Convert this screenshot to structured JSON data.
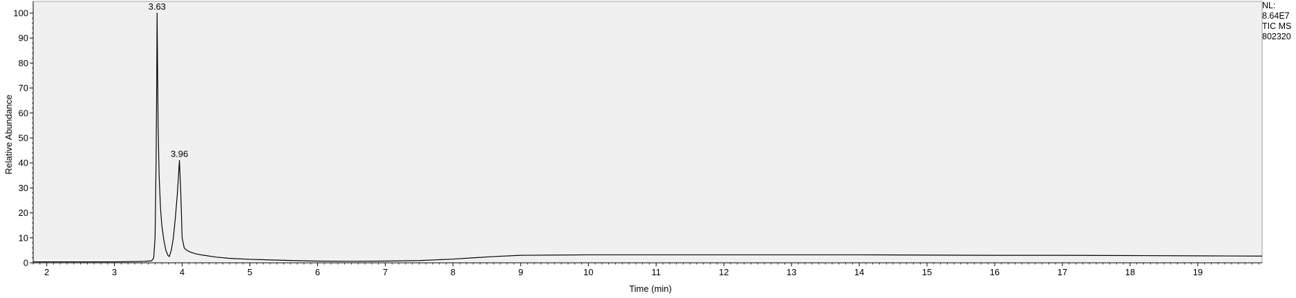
{
  "chart_data": {
    "type": "line",
    "title": "",
    "xlabel": "Time (min)",
    "ylabel": "Relative Abundance",
    "xlim": [
      1.8,
      19.95
    ],
    "ylim": [
      0,
      100
    ],
    "x_ticks": [
      2,
      3,
      4,
      5,
      6,
      7,
      8,
      9,
      10,
      11,
      12,
      13,
      14,
      15,
      16,
      17,
      18,
      19
    ],
    "y_ticks": [
      0,
      10,
      20,
      30,
      40,
      50,
      60,
      70,
      80,
      90,
      100
    ],
    "grid": false,
    "plot_background": "#f0f0f0",
    "line_color": "#000000",
    "series": [
      {
        "x": [
          1.8,
          2.5,
          3.0,
          3.3,
          3.45,
          3.55,
          3.58,
          3.6,
          3.615,
          3.625,
          3.63,
          3.635,
          3.645,
          3.66,
          3.68,
          3.7,
          3.73,
          3.76,
          3.79,
          3.81,
          3.84,
          3.87,
          3.9,
          3.93,
          3.96,
          3.98,
          4.0,
          4.03,
          4.07,
          4.12,
          4.2,
          4.3,
          4.5,
          4.7,
          5.0,
          5.5,
          6.0,
          6.5,
          7.0,
          7.5,
          8.0,
          8.3,
          8.6,
          9.0,
          9.5,
          10.0,
          11.0,
          12.0,
          13.0,
          14.0,
          15.0,
          16.0,
          17.0,
          18.0,
          19.0,
          19.95
        ],
        "y": [
          0.4,
          0.4,
          0.4,
          0.5,
          0.6,
          0.8,
          2.0,
          10.0,
          40.0,
          74.0,
          100.0,
          85.0,
          55.0,
          35.0,
          22.0,
          15.0,
          9.0,
          5.0,
          3.0,
          2.5,
          5.0,
          10.0,
          18.0,
          28.0,
          41.0,
          28.0,
          10.0,
          6.0,
          5.0,
          4.3,
          3.6,
          3.1,
          2.3,
          1.8,
          1.4,
          1.0,
          0.7,
          0.6,
          0.7,
          0.9,
          1.5,
          2.0,
          2.5,
          3.0,
          3.1,
          3.2,
          3.2,
          3.2,
          3.2,
          3.2,
          3.1,
          3.0,
          3.0,
          2.9,
          2.8,
          2.7
        ]
      }
    ],
    "peak_labels": [
      {
        "x": 3.63,
        "y": 100,
        "text": "3.63"
      },
      {
        "x": 3.96,
        "y": 41,
        "text": "3.96"
      }
    ]
  },
  "info_box": {
    "line1": "NL:",
    "line2": "8.64E7",
    "line3": "TIC  MS",
    "line4": "802320"
  }
}
